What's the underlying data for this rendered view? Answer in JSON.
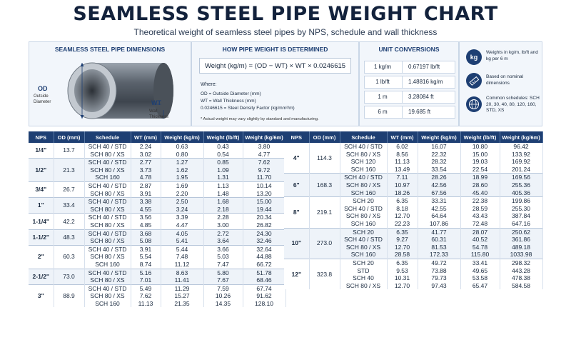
{
  "title": "SEAMLESS STEEL PIPE WEIGHT CHART",
  "subtitle": "Theoretical weight of seamless steel pipes by NPS, schedule and wall thickness",
  "colors": {
    "primary": "#1e3f73",
    "panel_bg": "#f2f6fb",
    "stripe": "#eef3f9"
  },
  "dimensions": {
    "title": "SEAMLESS STEEL PIPE DIMENSIONS",
    "od_label": "OD",
    "od_desc_1": "Outside",
    "od_desc_2": "Diameter",
    "wt_label": "WT",
    "wt_desc_1": "Wall",
    "wt_desc_2": "Thickness"
  },
  "formula_panel": {
    "title": "HOW PIPE WEIGHT IS DETERMINED",
    "formula": "Weight (kg/m) = (OD − WT) × WT × 0.0246615",
    "where": "Where:",
    "def_od": "OD = Outside Diameter (mm)",
    "def_wt": "WT = Wall Thickness (mm)",
    "def_factor": "0.0246615 = Steel Density Factor (kg/mm²/m)",
    "note": "* Actual weight may vary slightly by standard and manufacturing."
  },
  "conversions": {
    "title": "UNIT CONVERSIONS",
    "rows": [
      {
        "left": "1 kg/m",
        "right": "0.67197 lb/ft"
      },
      {
        "left": "1 lb/ft",
        "right": "1.48816 kg/m"
      },
      {
        "left": "1 m",
        "right": "3.28084 ft"
      },
      {
        "left": "6 m",
        "right": "19.685 ft"
      }
    ]
  },
  "info": {
    "icon_kg_label": "kg",
    "items": [
      {
        "icon": "kg-weight-icon",
        "text": "Weights in kg/m, lb/ft and kg per 6 m"
      },
      {
        "icon": "ruler-icon",
        "text": "Based on nominal dimensions"
      },
      {
        "icon": "globe-icon",
        "text": "Common schedules: SCH 20, 30, 40, 80, 120, 160, STD, XS"
      }
    ]
  },
  "table_headers": [
    "NPS",
    "OD (mm)",
    "Schedule",
    "WT (mm)",
    "Weight (kg/m)",
    "Weight (lb/ft)",
    "Weight (kg/6m)"
  ],
  "left_table": [
    {
      "nps": "1/4\"",
      "od": "13.7",
      "rows": [
        [
          "SCH 40 / STD",
          "2.24",
          "0.63",
          "0.43",
          "3.80"
        ],
        [
          "SCH 80 / XS",
          "3.02",
          "0.80",
          "0.54",
          "4.77"
        ]
      ]
    },
    {
      "nps": "1/2\"",
      "od": "21.3",
      "rows": [
        [
          "SCH 40 / STD",
          "2.77",
          "1.27",
          "0.85",
          "7.62"
        ],
        [
          "SCH 80 / XS",
          "3.73",
          "1.62",
          "1.09",
          "9.72"
        ],
        [
          "SCH 160",
          "4.78",
          "1.95",
          "1.31",
          "11.70"
        ]
      ]
    },
    {
      "nps": "3/4\"",
      "od": "26.7",
      "rows": [
        [
          "SCH 40 / STD",
          "2.87",
          "1.69",
          "1.13",
          "10.14"
        ],
        [
          "SCH 80 / XS",
          "3.91",
          "2.20",
          "1.48",
          "13.20"
        ]
      ]
    },
    {
      "nps": "1\"",
      "od": "33.4",
      "rows": [
        [
          "SCH 40 / STD",
          "3.38",
          "2.50",
          "1.68",
          "15.00"
        ],
        [
          "SCH 80 / XS",
          "4.55",
          "3.24",
          "2.18",
          "19.44"
        ]
      ]
    },
    {
      "nps": "1-1/4\"",
      "od": "42.2",
      "rows": [
        [
          "SCH 40 / STD",
          "3.56",
          "3.39",
          "2.28",
          "20.34"
        ],
        [
          "SCH 80 / XS",
          "4.85",
          "4.47",
          "3.00",
          "26.82"
        ]
      ]
    },
    {
      "nps": "1-1/2\"",
      "od": "48.3",
      "rows": [
        [
          "SCH 40 / STD",
          "3.68",
          "4.05",
          "2.72",
          "24.30"
        ],
        [
          "SCH 80 / XS",
          "5.08",
          "5.41",
          "3.64",
          "32.46"
        ]
      ]
    },
    {
      "nps": "2\"",
      "od": "60.3",
      "rows": [
        [
          "SCH 40 / STD",
          "3.91",
          "5.44",
          "3.66",
          "32.64"
        ],
        [
          "SCH 80 / XS",
          "5.54",
          "7.48",
          "5.03",
          "44.88"
        ],
        [
          "SCH 160",
          "8.74",
          "11.12",
          "7.47",
          "66.72"
        ]
      ]
    },
    {
      "nps": "2-1/2\"",
      "od": "73.0",
      "rows": [
        [
          "SCH 40 / STD",
          "5.16",
          "8.63",
          "5.80",
          "51.78"
        ],
        [
          "SCH 80 / XS",
          "7.01",
          "11.41",
          "7.67",
          "68.46"
        ]
      ]
    },
    {
      "nps": "3\"",
      "od": "88.9",
      "rows": [
        [
          "SCH 40 / STD",
          "5.49",
          "11.29",
          "7.59",
          "67.74"
        ],
        [
          "SCH 80 / XS",
          "7.62",
          "15.27",
          "10.26",
          "91.62"
        ],
        [
          "SCH 160",
          "11.13",
          "21.35",
          "14.35",
          "128.10"
        ]
      ]
    }
  ],
  "right_table": [
    {
      "nps": "4\"",
      "od": "114.3",
      "rows": [
        [
          "SCH 40 / STD",
          "6.02",
          "16.07",
          "10.80",
          "96.42"
        ],
        [
          "SCH 80 / XS",
          "8.56",
          "22.32",
          "15.00",
          "133.92"
        ],
        [
          "SCH 120",
          "11.13",
          "28.32",
          "19.03",
          "169.92"
        ],
        [
          "SCH 160",
          "13.49",
          "33.54",
          "22.54",
          "201.24"
        ]
      ]
    },
    {
      "nps": "6\"",
      "od": "168.3",
      "rows": [
        [
          "SCH 40 / STD",
          "7.11",
          "28.26",
          "18.99",
          "169.56"
        ],
        [
          "SCH 80 / XS",
          "10.97",
          "42.56",
          "28.60",
          "255.36"
        ],
        [
          "SCH 160",
          "18.26",
          "67.56",
          "45.40",
          "405.36"
        ]
      ]
    },
    {
      "nps": "8\"",
      "od": "219.1",
      "rows": [
        [
          "SCH 20",
          "6.35",
          "33.31",
          "22.38",
          "199.86"
        ],
        [
          "SCH 40 / STD",
          "8.18",
          "42.55",
          "28.59",
          "255.30"
        ],
        [
          "SCH 80 / XS",
          "12.70",
          "64.64",
          "43.43",
          "387.84"
        ],
        [
          "SCH 160",
          "22.23",
          "107.86",
          "72.48",
          "647.16"
        ]
      ]
    },
    {
      "nps": "10\"",
      "od": "273.0",
      "rows": [
        [
          "SCH 20",
          "6.35",
          "41.77",
          "28.07",
          "250.62"
        ],
        [
          "SCH 40 / STD",
          "9.27",
          "60.31",
          "40.52",
          "361.86"
        ],
        [
          "SCH 80 / XS",
          "12.70",
          "81.53",
          "54.78",
          "489.18"
        ],
        [
          "SCH 160",
          "28.58",
          "172.33",
          "115.80",
          "1033.98"
        ]
      ]
    },
    {
      "nps": "12\"",
      "od": "323.8",
      "rows": [
        [
          "SCH 20",
          "6.35",
          "49.72",
          "33.41",
          "298.32"
        ],
        [
          "STD",
          "9.53",
          "73.88",
          "49.65",
          "443.28"
        ],
        [
          "SCH 40",
          "10.31",
          "79.73",
          "53.58",
          "478.38"
        ],
        [
          "SCH 80 / XS",
          "12.70",
          "97.43",
          "65.47",
          "584.58"
        ]
      ]
    }
  ]
}
